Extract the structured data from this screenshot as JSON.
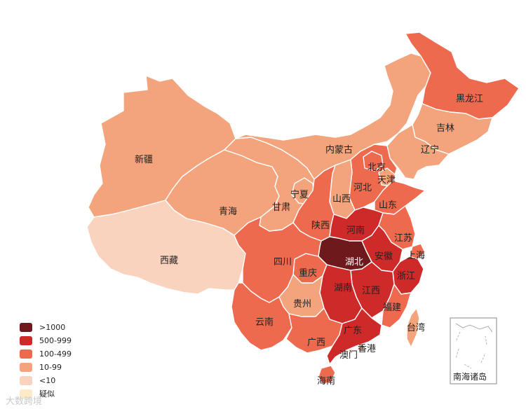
{
  "colors": {
    "c1000": "#6e1a1c",
    "c500": "#cf2a2a",
    "c100": "#ee6a4e",
    "c10": "#f4a47c",
    "c1": "#f9d3bd",
    "suspected": "#fdebc7",
    "border": "#ffffff"
  },
  "legend": [
    {
      "label": ">1000",
      "color_key": "c1000"
    },
    {
      "label": "500-999",
      "color_key": "c500"
    },
    {
      "label": "100-499",
      "color_key": "c100"
    },
    {
      "label": "10-99",
      "color_key": "c10"
    },
    {
      "label": "<10",
      "color_key": "c1"
    },
    {
      "label": "疑似",
      "color_key": "suspected"
    }
  ],
  "provinces": {
    "xinjiang": {
      "name": "新疆",
      "level": "c10"
    },
    "xizang": {
      "name": "西藏",
      "level": "c1"
    },
    "qinghai": {
      "name": "青海",
      "level": "c10"
    },
    "gansu": {
      "name": "甘肃",
      "level": "c10"
    },
    "ningxia": {
      "name": "宁夏",
      "level": "c10"
    },
    "neimenggu": {
      "name": "内蒙古",
      "level": "c10"
    },
    "heilongjiang": {
      "name": "黑龙江",
      "level": "c100"
    },
    "jilin": {
      "name": "吉林",
      "level": "c10"
    },
    "liaoning": {
      "name": "辽宁",
      "level": "c10"
    },
    "beijing": {
      "name": "北京",
      "level": "c100"
    },
    "tianjin": {
      "name": "天津",
      "level": "c10"
    },
    "hebei": {
      "name": "河北",
      "level": "c100"
    },
    "shanxi": {
      "name": "山西",
      "level": "c10"
    },
    "shaanxi": {
      "name": "陕西",
      "level": "c100"
    },
    "shandong": {
      "name": "山东",
      "level": "c100"
    },
    "henan": {
      "name": "河南",
      "level": "c500"
    },
    "jiangsu": {
      "name": "江苏",
      "level": "c100"
    },
    "anhui": {
      "name": "安徽",
      "level": "c500"
    },
    "shanghai": {
      "name": "上海",
      "level": "c100"
    },
    "hubei": {
      "name": "湖北",
      "level": "c1000"
    },
    "sichuan": {
      "name": "四川",
      "level": "c100"
    },
    "chongqing": {
      "name": "重庆",
      "level": "c100"
    },
    "zhejiang": {
      "name": "浙江",
      "level": "c500"
    },
    "hunan": {
      "name": "湖南",
      "level": "c500"
    },
    "jiangxi": {
      "name": "江西",
      "level": "c500"
    },
    "guizhou": {
      "name": "贵州",
      "level": "c10"
    },
    "fujian": {
      "name": "福建",
      "level": "c100"
    },
    "yunnan": {
      "name": "云南",
      "level": "c100"
    },
    "guangxi": {
      "name": "广西",
      "level": "c100"
    },
    "guangdong": {
      "name": "广东",
      "level": "c500"
    },
    "hongkong": {
      "name": "香港",
      "level": "c10"
    },
    "macau": {
      "name": "澳门",
      "level": "c1"
    },
    "hainan": {
      "name": "海南",
      "level": "c100"
    },
    "taiwan": {
      "name": "台湾",
      "level": "c10"
    }
  },
  "inset_label": "南海诸岛",
  "watermark": "大数跨境"
}
